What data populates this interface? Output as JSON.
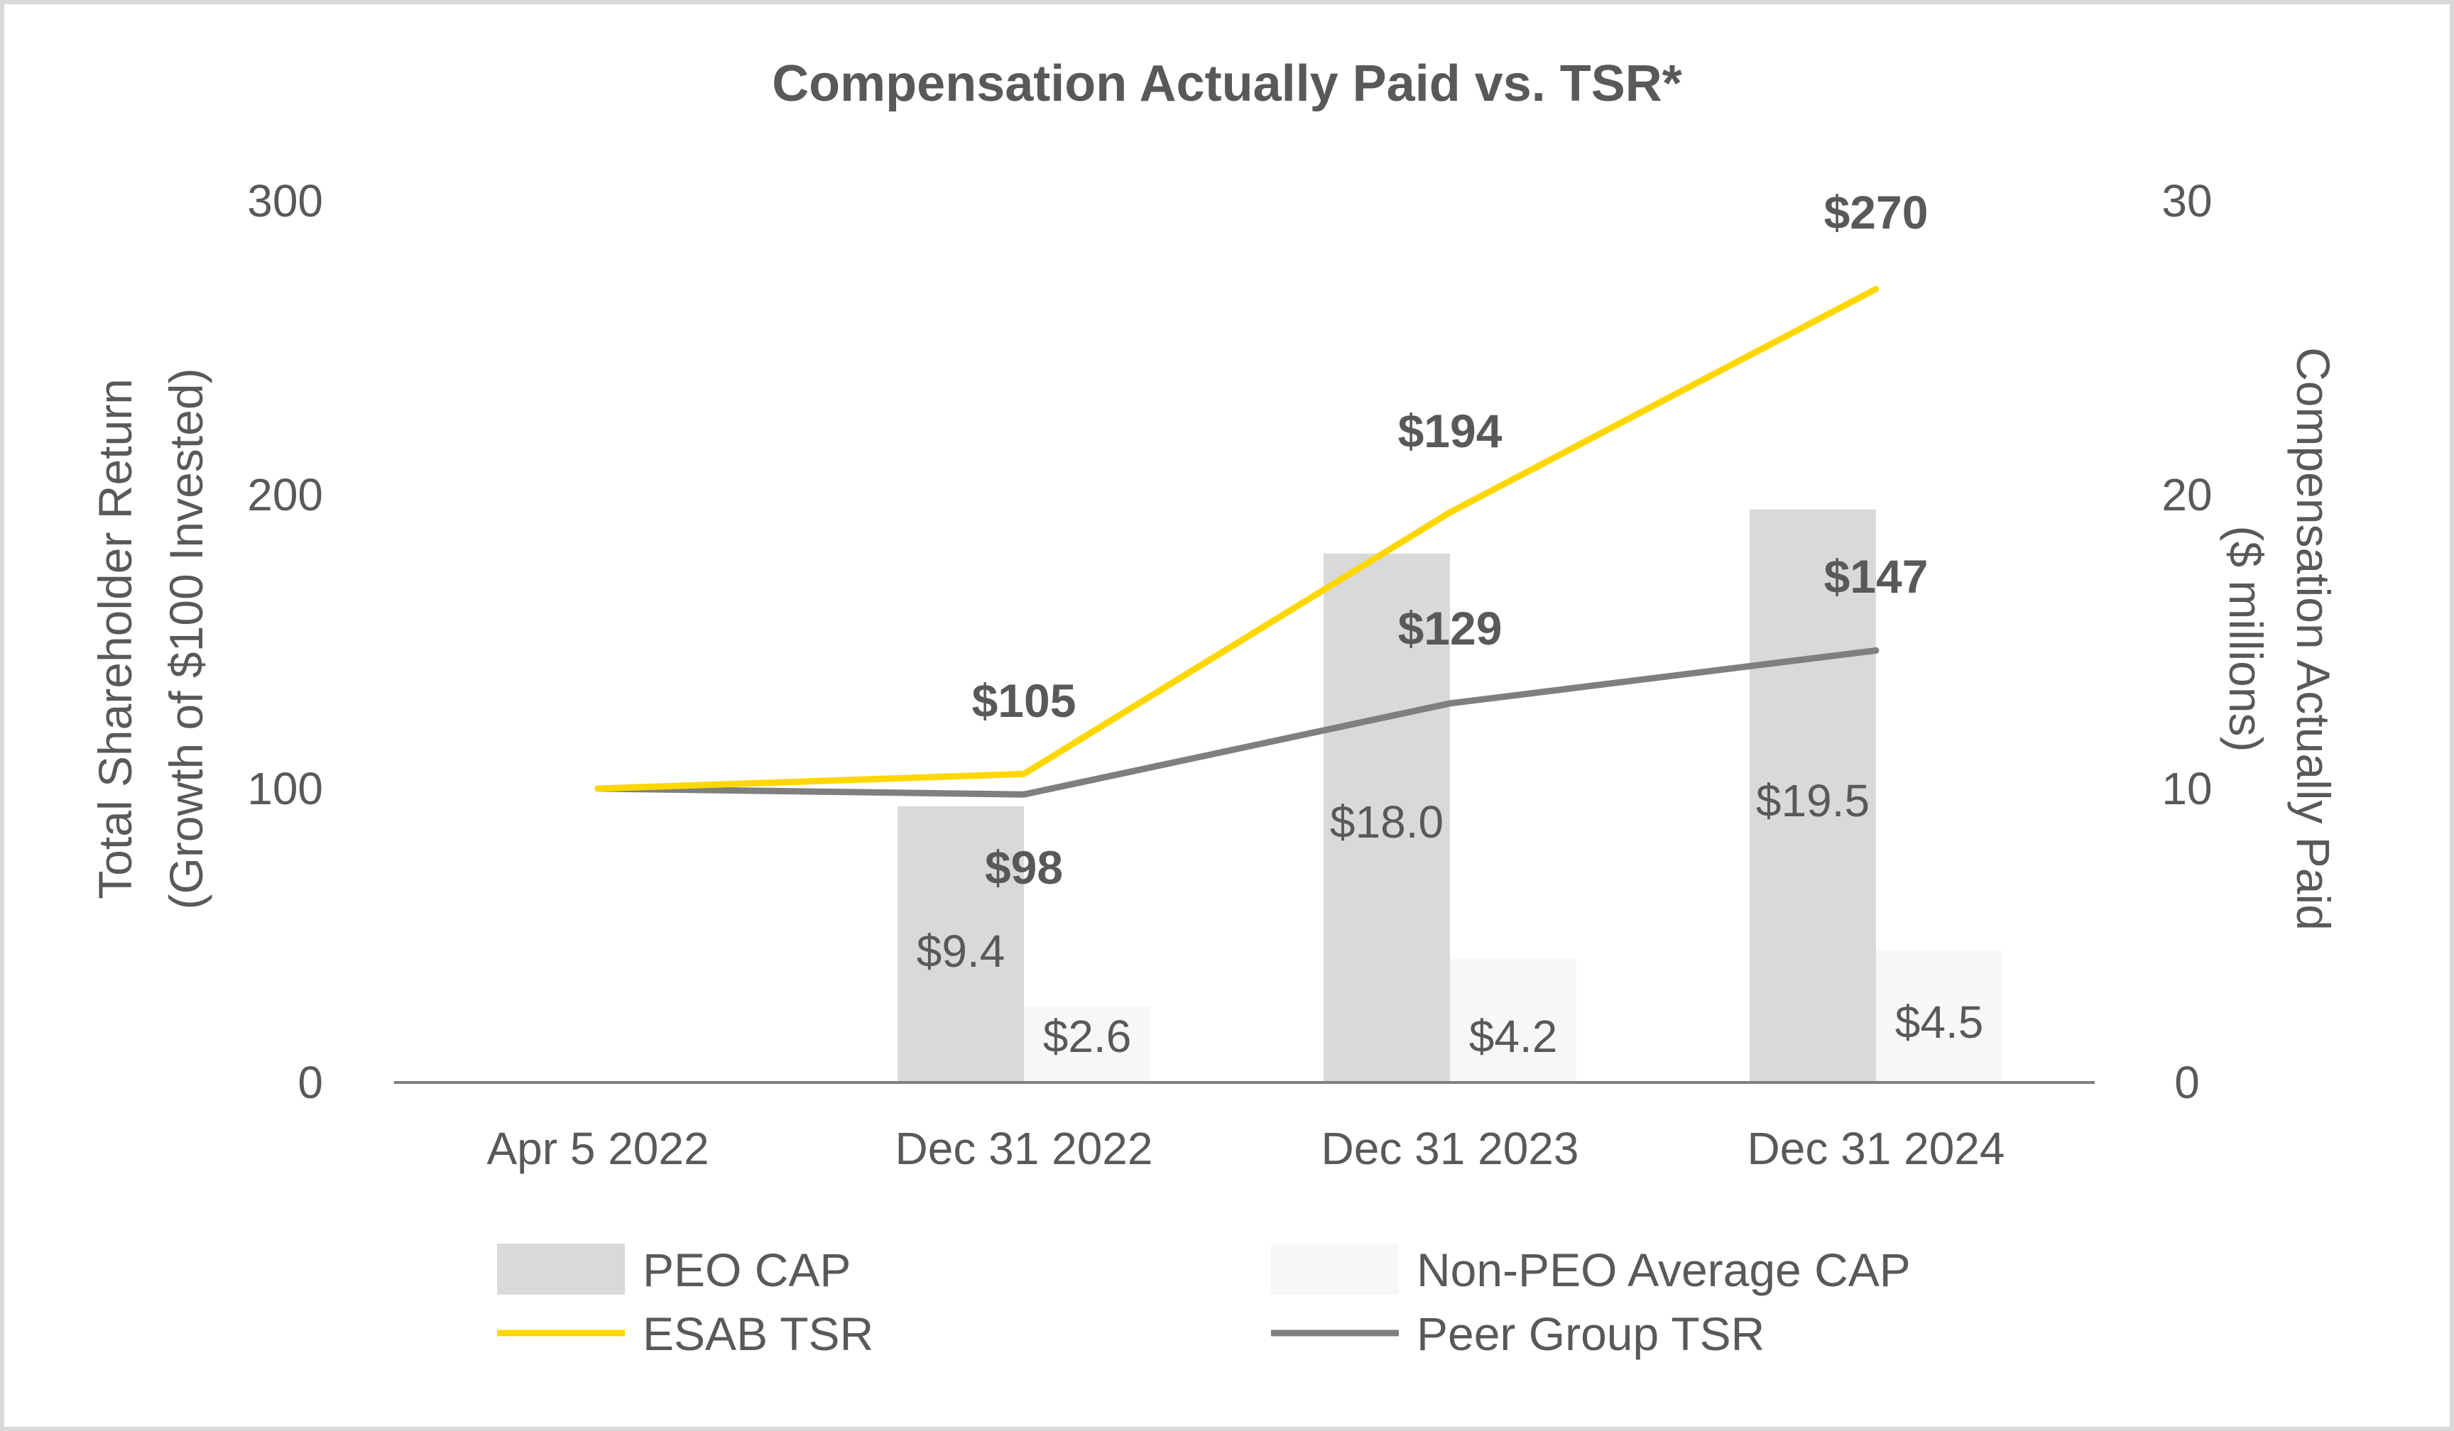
{
  "chart_data": {
    "type": "bar",
    "title": "Compensation Actually Paid vs. TSR*",
    "categories": [
      "Apr 5 2022",
      "Dec 31 2022",
      "Dec 31 2023",
      "Dec 31 2024"
    ],
    "y_left": {
      "label_line1": "Total Shareholder Return",
      "label_line2": "(Growth of $100 Invested)",
      "ylim": [
        0,
        300
      ],
      "ticks": [
        "0",
        "100",
        "200",
        "300"
      ]
    },
    "y_right": {
      "label_line1": "Compensation Actually Paid",
      "label_line2": "($ millions)",
      "ylim": [
        0,
        30
      ],
      "ticks": [
        "0",
        "10",
        "20",
        "30"
      ]
    },
    "bar_series": [
      {
        "name": "PEO CAP",
        "axis": "right",
        "color": "#d9d9d9",
        "values": [
          null,
          9.4,
          18.0,
          19.5
        ],
        "labels": [
          null,
          "$9.4",
          "$18.0",
          "$19.5"
        ]
      },
      {
        "name": "Non-PEO Average CAP",
        "axis": "right",
        "color": "#f7f7f7",
        "values": [
          null,
          2.6,
          4.2,
          4.5
        ],
        "labels": [
          null,
          "$2.6",
          "$4.2",
          "$4.5"
        ]
      }
    ],
    "line_series": [
      {
        "name": "ESAB TSR",
        "axis": "left",
        "color": "#ffd700",
        "values": [
          100,
          105,
          194,
          270
        ],
        "labels": [
          null,
          "$105",
          "$194",
          "$270"
        ]
      },
      {
        "name": "Peer Group TSR",
        "axis": "left",
        "color": "#7f7f7f",
        "values": [
          100,
          98,
          129,
          147
        ],
        "labels": [
          null,
          "$98",
          "$129",
          "$147"
        ]
      }
    ],
    "legend_position": "bottom"
  }
}
